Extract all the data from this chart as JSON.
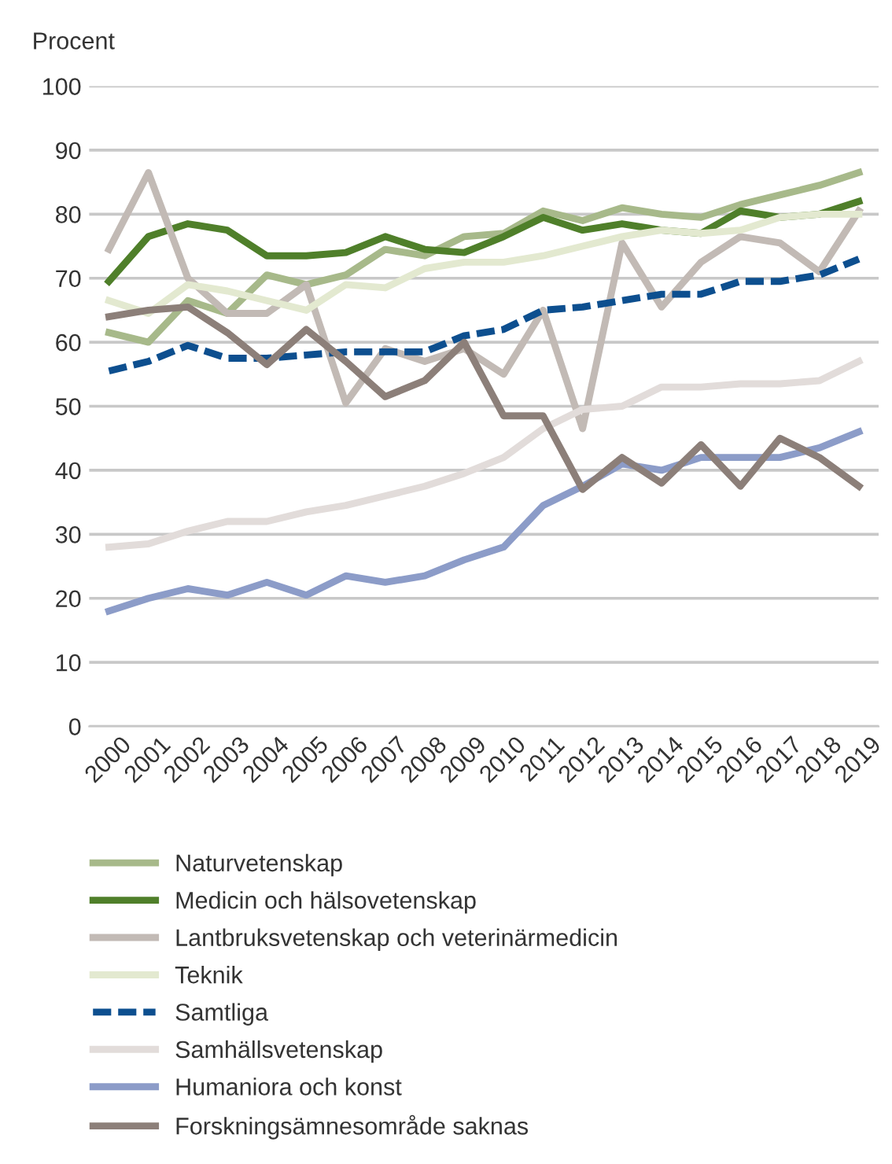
{
  "chart_data": {
    "type": "line",
    "ylabel": "Procent",
    "categories": [
      "2000",
      "2001",
      "2002",
      "2003",
      "2004",
      "2005",
      "2006",
      "2007",
      "2008",
      "2009",
      "2010",
      "2011",
      "2012",
      "2013",
      "2014",
      "2015",
      "2016",
      "2017",
      "2018",
      "2019"
    ],
    "series": [
      {
        "name": "Naturvetenskap",
        "color": "#a7b98a",
        "values": [
          61.5,
          60,
          66.5,
          64.5,
          70.5,
          69,
          70.5,
          74.5,
          73.5,
          76.5,
          77,
          80.5,
          79,
          81,
          80,
          79.5,
          81.5,
          83,
          84.5,
          86.5
        ]
      },
      {
        "name": "Medicin och hälsovetenskap",
        "color": "#4f7f2a",
        "values": [
          69.5,
          76.5,
          78.5,
          77.5,
          73.5,
          73.5,
          74,
          76.5,
          74.5,
          74,
          76.5,
          79.5,
          77.5,
          78.5,
          77.5,
          77,
          80.5,
          79.5,
          80,
          82
        ]
      },
      {
        "name": "Lantbruksvetenskap och veterinärmedicin",
        "color": "#c2bab5",
        "values": [
          74.5,
          86.5,
          70,
          64.5,
          64.5,
          69,
          50.5,
          59,
          57,
          59,
          55,
          65,
          46.5,
          75.5,
          65.5,
          72.5,
          76.5,
          75.5,
          71,
          80.5
        ]
      },
      {
        "name": "Teknik",
        "color": "#e3e9d0",
        "values": [
          66.5,
          64.5,
          69,
          68,
          66.5,
          65,
          69,
          68.5,
          71.5,
          72.5,
          72.5,
          73.5,
          75,
          76.5,
          77.5,
          77,
          77.5,
          79.5,
          80,
          80
        ]
      },
      {
        "name": "Samtliga",
        "color": "#0d4f8f",
        "line_style": "dashed",
        "values": [
          55.5,
          57,
          59.5,
          57.5,
          57.5,
          58,
          58.5,
          58.5,
          58.5,
          61,
          62,
          65,
          65.5,
          66.5,
          67.5,
          67.5,
          69.5,
          69.5,
          70.5,
          73
        ]
      },
      {
        "name": "Samhällsvetenskap",
        "color": "#e2dcda",
        "values": [
          28,
          28.5,
          30.5,
          32,
          32,
          33.5,
          34.5,
          36,
          37.5,
          39.5,
          42,
          46.5,
          49.5,
          50,
          53,
          53,
          53.5,
          53.5,
          54,
          57
        ]
      },
      {
        "name": "Humaniora och konst",
        "color": "#8c9cc8",
        "values": [
          18,
          20,
          21.5,
          20.5,
          22.5,
          20.5,
          23.5,
          22.5,
          23.5,
          26,
          28,
          34.5,
          37.5,
          41,
          40,
          42,
          42,
          42,
          43.5,
          46
        ]
      },
      {
        "name": "Forskningsämnesområde saknas",
        "color": "#8c7f79",
        "values": [
          64,
          65,
          65.5,
          61.5,
          56.5,
          62,
          57,
          51.5,
          54,
          60,
          48.5,
          48.5,
          37,
          42,
          38,
          44,
          37.5,
          45,
          42,
          37.5
        ]
      }
    ],
    "ylim": [
      0,
      100
    ],
    "yticks": [
      0,
      10,
      20,
      30,
      40,
      50,
      60,
      70,
      80,
      90,
      100
    ],
    "grid": "y",
    "legend": "bottom",
    "marker": "none",
    "line_style": "solid"
  }
}
